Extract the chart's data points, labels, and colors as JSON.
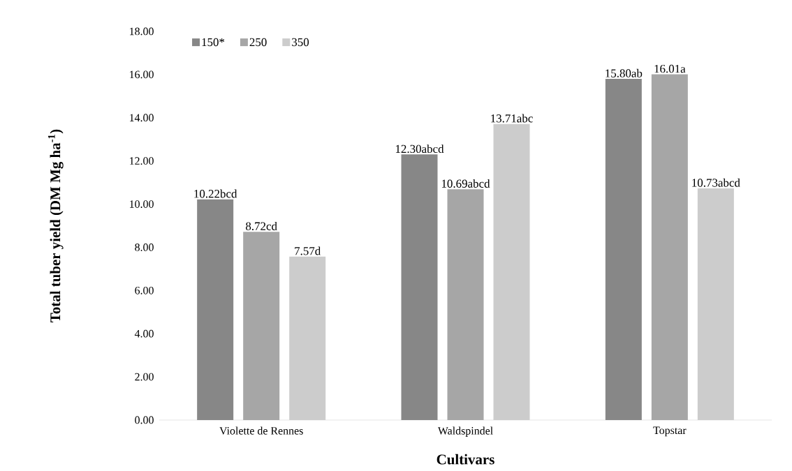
{
  "chart_data": {
    "type": "bar",
    "xlabel": "Cultivars",
    "ylabel": "Total tuber yield (DM Mg ha$^{-1}$)",
    "categories": [
      "Violette de Rennes",
      "Waldspindel",
      "Topstar"
    ],
    "series": [
      {
        "name": "150*",
        "color": "#878787",
        "values": [
          10.22,
          12.3,
          15.8
        ],
        "value_labels": [
          "10.22bcd",
          "12.30abcd",
          "15.80ab"
        ]
      },
      {
        "name": "250",
        "color": "#a6a6a6",
        "values": [
          8.72,
          10.69,
          16.01
        ],
        "value_labels": [
          "8.72cd",
          "10.69abcd",
          "16.01a"
        ]
      },
      {
        "name": "350",
        "color": "#cccccc",
        "values": [
          7.57,
          13.71,
          10.73
        ],
        "value_labels": [
          "7.57d",
          "13.71abc",
          "10.73abcd"
        ]
      }
    ],
    "ylim": [
      0,
      18
    ],
    "yticks": [
      {
        "value": 0,
        "label": "0.00"
      },
      {
        "value": 2,
        "label": "2.00"
      },
      {
        "value": 4,
        "label": "4.00"
      },
      {
        "value": 6,
        "label": "6.00"
      },
      {
        "value": 8,
        "label": "8.00"
      },
      {
        "value": 10,
        "label": "10.00"
      },
      {
        "value": 12,
        "label": "12.00"
      },
      {
        "value": 14,
        "label": "14.00"
      },
      {
        "value": 16,
        "label": "16.00"
      },
      {
        "value": 18,
        "label": "18.00"
      }
    ],
    "legend": "top left",
    "grid": false
  }
}
